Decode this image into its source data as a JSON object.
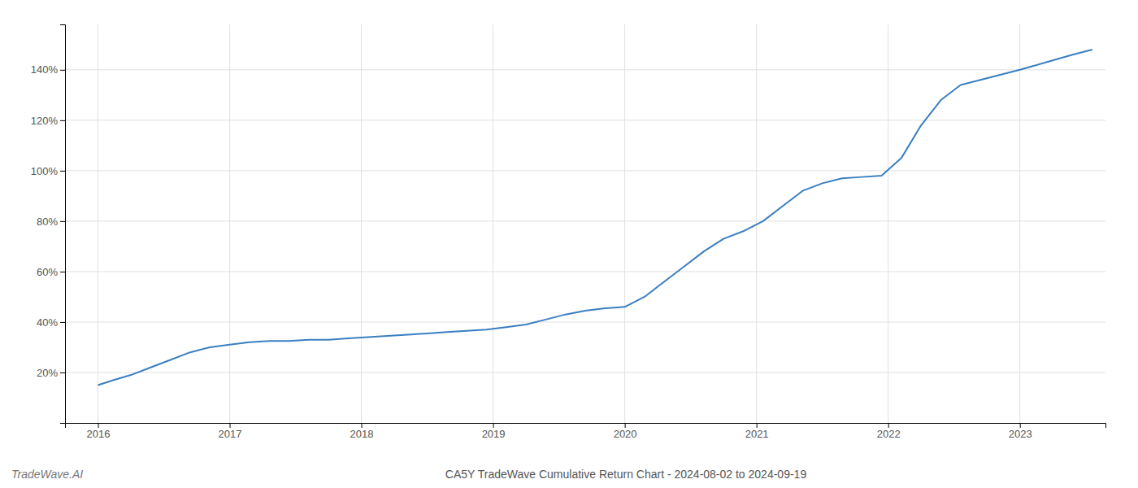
{
  "chart_data": {
    "type": "line",
    "title": "CA5Y TradeWave Cumulative Return Chart - 2024-08-02 to 2024-09-19",
    "annotations": [
      "TradeWave.AI"
    ],
    "x": [
      2016.0,
      2016.12,
      2016.25,
      2016.4,
      2016.55,
      2016.7,
      2016.85,
      2017.0,
      2017.15,
      2017.3,
      2017.45,
      2017.6,
      2017.75,
      2017.9,
      2018.05,
      2018.2,
      2018.35,
      2018.5,
      2018.65,
      2018.8,
      2018.95,
      2019.1,
      2019.25,
      2019.4,
      2019.55,
      2019.7,
      2019.85,
      2020.0,
      2020.15,
      2020.3,
      2020.45,
      2020.6,
      2020.75,
      2020.9,
      2021.05,
      2021.2,
      2021.35,
      2021.5,
      2021.65,
      2021.8,
      2021.95,
      2022.1,
      2022.25,
      2022.4,
      2022.55,
      2022.7,
      2022.85,
      2023.0,
      2023.2,
      2023.4,
      2023.55
    ],
    "values": [
      15,
      17,
      19,
      22,
      25,
      28,
      30,
      31,
      32,
      32.5,
      32.5,
      33,
      33,
      33.5,
      34,
      34.5,
      35,
      35.5,
      36,
      36.5,
      37,
      38,
      39,
      41,
      43,
      44.5,
      45.5,
      46,
      50,
      56,
      62,
      68,
      73,
      76,
      80,
      86,
      92,
      95,
      97,
      97.5,
      98,
      105,
      118,
      128,
      134,
      136,
      138,
      140,
      143,
      146,
      148
    ],
    "color": "#3a7fc1",
    "xlim": [
      2015.75,
      2023.65
    ],
    "ylim": [
      0,
      158
    ],
    "xticks": [
      2016,
      2017,
      2018,
      2019,
      2020,
      2021,
      2022,
      2023
    ],
    "yticks": [
      {
        "value": 20,
        "label": "20%"
      },
      {
        "value": 40,
        "label": "40%"
      },
      {
        "value": 60,
        "label": "60%"
      },
      {
        "value": 80,
        "label": "80%"
      },
      {
        "value": 100,
        "label": "100%"
      },
      {
        "value": 120,
        "label": "120%"
      },
      {
        "value": 140,
        "label": "140%"
      }
    ],
    "grid": true
  }
}
